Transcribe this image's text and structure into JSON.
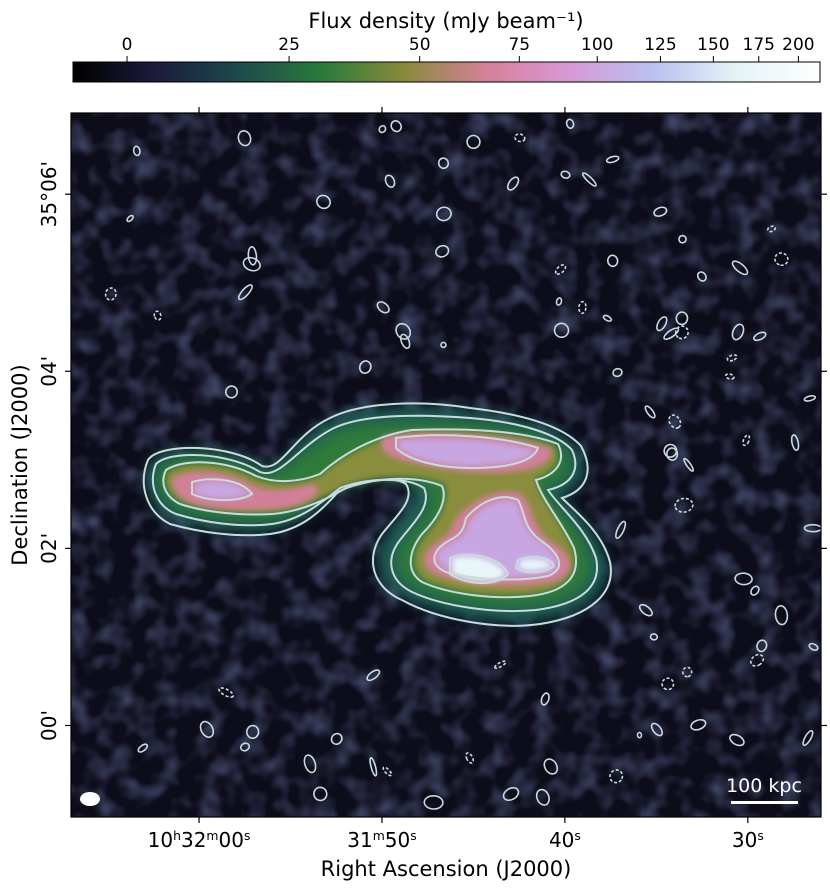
{
  "chart_data": {
    "type": "heatmap",
    "colorbar": {
      "label": "Flux density (mJy beam⁻¹)",
      "ticks": [
        0,
        25,
        50,
        75,
        100,
        125,
        150,
        175,
        200
      ],
      "tick_labels": [
        "0",
        "25",
        "50",
        "75",
        "100",
        "125",
        "150",
        "175",
        "200"
      ],
      "range": [
        -8,
        215
      ],
      "scale": "asinh",
      "placement": "top",
      "colormap": [
        "#000000",
        "#1c1b3c",
        "#1d4a4d",
        "#2a7a3c",
        "#8a8a3c",
        "#d6809a",
        "#d79ad6",
        "#b9c1ef",
        "#e4f4f7",
        "#ffffff"
      ]
    },
    "xaxis": {
      "label": "Right Ascension (J2000)",
      "ticks": [
        {
          "value": "10:32:00",
          "text": "10h32m00s"
        },
        {
          "value": "10:31:50",
          "text": "31m50s"
        },
        {
          "value": "10:31:40",
          "text": "40s"
        },
        {
          "value": "10:31:30",
          "text": "30s"
        }
      ],
      "range": [
        "10:32:07",
        "10:31:26"
      ]
    },
    "yaxis": {
      "label": "Declination (J2000)",
      "ticks": [
        {
          "value": "+35:06:00",
          "text": "35°06'"
        },
        {
          "value": "+35:04:00",
          "text": "04'"
        },
        {
          "value": "+35:02:00",
          "text": "02'"
        },
        {
          "value": "+35:00:00",
          "text": "00'"
        }
      ],
      "range": [
        "+34:58:58",
        "+35:06:55"
      ]
    },
    "scale_bar": {
      "label": "100 kpc"
    },
    "beam": {
      "shape": "ellipse",
      "color": "#ffffff"
    },
    "contours": {
      "color": "#c8dcdf",
      "negative_style": "dashed"
    },
    "grid": false
  }
}
